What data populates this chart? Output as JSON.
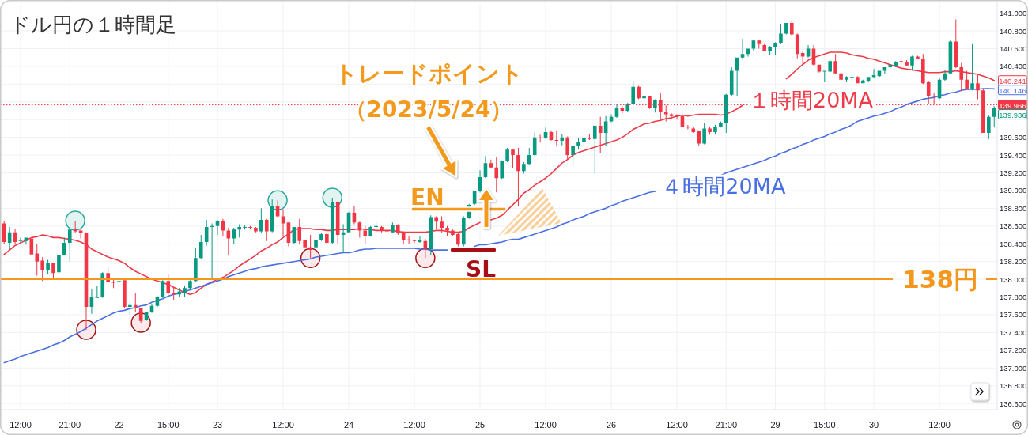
{
  "chart_data": {
    "type": "candlestick",
    "title": "ドル円の１時間足",
    "categories": [
      null,
      null,
      null,
      "12:00",
      null,
      null,
      null,
      null,
      null,
      null,
      null,
      null,
      "21:00",
      null,
      null,
      null,
      null,
      null,
      null,
      null,
      null,
      "22",
      null,
      null,
      null,
      null,
      null,
      null,
      null,
      null,
      "15:00",
      null,
      null,
      null,
      null,
      null,
      null,
      null,
      null,
      "23",
      null,
      null,
      null,
      null,
      null,
      null,
      null,
      null,
      null,
      null,
      null,
      "12:00",
      null,
      null,
      null,
      null,
      null,
      null,
      null,
      null,
      null,
      null,
      null,
      "24",
      null,
      null,
      null,
      null,
      null,
      null,
      null,
      null,
      null,
      null,
      null,
      "12:00",
      null,
      null,
      null,
      null,
      null,
      null,
      null,
      null,
      null,
      null,
      null,
      "25",
      null,
      null,
      null,
      null,
      null,
      null,
      null,
      null,
      null,
      null,
      null,
      "12:00",
      null,
      null,
      null,
      null,
      null,
      null,
      null,
      null,
      null,
      null,
      null,
      "26",
      null,
      null,
      null,
      null,
      null,
      null,
      null,
      null,
      null,
      null,
      null,
      "12:00",
      null,
      null,
      null,
      null,
      null,
      null,
      null,
      null,
      "21:00",
      null,
      null,
      null,
      null,
      null,
      null,
      null,
      null,
      "29",
      null,
      null,
      null,
      null,
      null,
      null,
      null,
      null,
      "15:00",
      null,
      null,
      null,
      null,
      null,
      null,
      null,
      null,
      "30",
      null,
      null,
      null,
      null,
      null,
      null,
      null,
      null,
      null,
      null,
      null,
      "12:00",
      null,
      null,
      null,
      null,
      null,
      null,
      null,
      null,
      null,
      null
    ],
    "ohlc": [
      [
        138.63,
        138.66,
        138.4,
        138.42
      ],
      [
        138.41,
        138.59,
        138.34,
        138.53
      ],
      [
        138.53,
        138.57,
        138.39,
        138.42
      ],
      [
        138.43,
        138.47,
        138.41,
        138.44
      ],
      [
        138.43,
        138.47,
        138.39,
        138.47
      ],
      [
        138.46,
        138.46,
        138.28,
        138.28
      ],
      [
        138.29,
        138.4,
        138.04,
        138.2
      ],
      [
        138.21,
        138.25,
        137.98,
        138.1
      ],
      [
        138.1,
        138.22,
        138.06,
        138.18
      ],
      [
        138.18,
        138.18,
        138.01,
        138.07
      ],
      [
        138.08,
        138.28,
        138.07,
        138.27
      ],
      [
        138.27,
        138.47,
        138.27,
        138.41
      ],
      [
        138.41,
        138.57,
        138.2,
        138.56
      ],
      [
        138.56,
        138.66,
        138.52,
        138.54
      ],
      [
        138.55,
        138.56,
        138.46,
        138.52
      ],
      [
        138.52,
        138.53,
        137.43,
        137.69
      ],
      [
        137.69,
        137.89,
        137.61,
        137.8
      ],
      [
        137.79,
        137.93,
        137.79,
        137.8
      ],
      [
        137.8,
        138.08,
        137.79,
        138.07
      ],
      [
        138.07,
        138.14,
        137.96,
        137.97
      ],
      [
        137.97,
        138.0,
        137.9,
        137.96
      ],
      [
        137.97,
        138.03,
        137.96,
        137.98
      ],
      [
        137.99,
        137.99,
        137.68,
        137.69
      ],
      [
        137.69,
        137.75,
        137.6,
        137.71
      ],
      [
        137.71,
        137.85,
        137.63,
        137.69
      ],
      [
        137.68,
        137.68,
        137.51,
        137.53
      ],
      [
        137.54,
        137.63,
        137.53,
        137.63
      ],
      [
        137.63,
        137.72,
        137.62,
        137.7
      ],
      [
        137.7,
        137.81,
        137.69,
        137.8
      ],
      [
        137.8,
        137.99,
        137.79,
        137.98
      ],
      [
        137.98,
        138.05,
        137.82,
        137.84
      ],
      [
        137.85,
        137.91,
        137.77,
        137.83
      ],
      [
        137.83,
        137.9,
        137.8,
        137.86
      ],
      [
        137.84,
        137.92,
        137.8,
        137.9
      ],
      [
        137.9,
        137.99,
        137.89,
        137.98
      ],
      [
        137.98,
        138.35,
        137.97,
        138.24
      ],
      [
        138.24,
        138.5,
        138.23,
        138.42
      ],
      [
        138.42,
        138.67,
        138.38,
        138.59
      ],
      [
        138.59,
        138.63,
        138.0,
        138.6
      ],
      [
        138.6,
        138.67,
        138.5,
        138.66
      ],
      [
        138.66,
        138.68,
        138.49,
        138.55
      ],
      [
        138.55,
        138.58,
        138.27,
        138.46
      ],
      [
        138.46,
        138.58,
        138.4,
        138.56
      ],
      [
        138.56,
        138.62,
        138.47,
        138.59
      ],
      [
        138.58,
        138.61,
        138.56,
        138.59
      ],
      [
        138.59,
        138.6,
        138.56,
        138.58
      ],
      [
        138.58,
        138.59,
        138.53,
        138.54
      ],
      [
        138.54,
        138.8,
        138.52,
        138.67
      ],
      [
        138.67,
        138.68,
        138.43,
        138.54
      ],
      [
        138.54,
        138.9,
        138.53,
        138.83
      ],
      [
        138.83,
        138.89,
        138.7,
        138.71
      ],
      [
        138.71,
        138.79,
        138.49,
        138.63
      ],
      [
        138.64,
        138.64,
        138.37,
        138.41
      ],
      [
        138.41,
        138.59,
        138.4,
        138.59
      ],
      [
        138.59,
        138.68,
        138.39,
        138.43
      ],
      [
        138.44,
        138.44,
        138.36,
        138.36
      ],
      [
        138.36,
        138.5,
        138.24,
        138.33
      ],
      [
        138.36,
        138.44,
        138.28,
        138.44
      ],
      [
        138.44,
        138.52,
        138.43,
        138.51
      ],
      [
        138.51,
        138.52,
        138.4,
        138.41
      ],
      [
        138.41,
        138.92,
        138.4,
        138.87
      ],
      [
        138.87,
        138.88,
        138.4,
        138.5
      ],
      [
        138.5,
        138.62,
        138.31,
        138.53
      ],
      [
        138.53,
        138.76,
        138.53,
        138.75
      ],
      [
        138.75,
        138.83,
        138.62,
        138.64
      ],
      [
        138.64,
        138.65,
        138.47,
        138.55
      ],
      [
        138.55,
        138.61,
        138.4,
        138.49
      ],
      [
        138.49,
        138.6,
        138.48,
        138.59
      ],
      [
        138.59,
        138.64,
        138.56,
        138.6
      ],
      [
        138.59,
        138.6,
        138.53,
        138.55
      ],
      [
        138.55,
        138.56,
        138.53,
        138.54
      ],
      [
        138.53,
        138.64,
        138.52,
        138.61
      ],
      [
        138.61,
        138.62,
        138.5,
        138.52
      ],
      [
        138.53,
        138.54,
        138.4,
        138.44
      ],
      [
        138.45,
        138.49,
        138.4,
        138.44
      ],
      [
        138.44,
        138.45,
        138.41,
        138.43
      ],
      [
        138.42,
        138.49,
        138.41,
        138.44
      ],
      [
        138.43,
        138.46,
        138.24,
        138.34
      ],
      [
        138.34,
        138.72,
        138.27,
        138.7
      ],
      [
        138.7,
        138.71,
        138.56,
        138.65
      ],
      [
        138.65,
        138.71,
        138.52,
        138.58
      ],
      [
        138.58,
        138.6,
        138.49,
        138.55
      ],
      [
        138.55,
        138.56,
        138.49,
        138.5
      ],
      [
        138.51,
        138.52,
        138.37,
        138.39
      ],
      [
        138.39,
        138.71,
        138.37,
        138.69
      ],
      [
        138.69,
        138.85,
        138.68,
        138.84
      ],
      [
        138.85,
        139.0,
        138.84,
        138.99
      ],
      [
        138.99,
        139.23,
        138.98,
        139.15
      ],
      [
        139.15,
        139.39,
        139.14,
        139.31
      ],
      [
        139.31,
        139.35,
        139.25,
        139.26
      ],
      [
        139.26,
        139.38,
        138.98,
        139.14
      ],
      [
        139.14,
        139.34,
        139.13,
        139.33
      ],
      [
        139.33,
        139.48,
        139.32,
        139.46
      ],
      [
        139.46,
        139.47,
        139.25,
        139.4
      ],
      [
        139.4,
        139.48,
        138.82,
        139.22
      ],
      [
        139.22,
        139.32,
        139.19,
        139.3
      ],
      [
        139.3,
        139.48,
        139.29,
        139.4
      ],
      [
        139.4,
        139.66,
        139.39,
        139.6
      ],
      [
        139.6,
        139.63,
        139.54,
        139.59
      ],
      [
        139.59,
        139.71,
        139.58,
        139.66
      ],
      [
        139.66,
        139.68,
        139.56,
        139.57
      ],
      [
        139.57,
        139.68,
        139.5,
        139.56
      ],
      [
        139.56,
        139.64,
        139.51,
        139.6
      ],
      [
        139.6,
        139.61,
        139.35,
        139.4
      ],
      [
        139.4,
        139.51,
        139.29,
        139.5
      ],
      [
        139.5,
        139.59,
        139.46,
        139.55
      ],
      [
        139.55,
        139.6,
        139.53,
        139.59
      ],
      [
        139.59,
        139.64,
        139.57,
        139.58
      ],
      [
        139.58,
        139.74,
        139.19,
        139.73
      ],
      [
        139.73,
        139.83,
        139.42,
        139.65
      ],
      [
        139.65,
        139.84,
        139.5,
        139.78
      ],
      [
        139.78,
        139.86,
        139.77,
        139.83
      ],
      [
        139.83,
        139.97,
        139.82,
        139.93
      ],
      [
        139.93,
        139.95,
        139.87,
        139.9
      ],
      [
        139.9,
        139.99,
        139.89,
        139.98
      ],
      [
        139.98,
        140.23,
        139.98,
        140.17
      ],
      [
        140.17,
        140.18,
        140.03,
        140.04
      ],
      [
        140.04,
        140.09,
        140.01,
        140.06
      ],
      [
        140.06,
        140.07,
        139.92,
        139.93
      ],
      [
        139.93,
        140.03,
        139.88,
        140.02
      ],
      [
        140.02,
        140.1,
        139.8,
        139.89
      ],
      [
        139.89,
        139.96,
        139.78,
        139.86
      ],
      [
        139.86,
        139.87,
        139.81,
        139.84
      ],
      [
        139.85,
        139.86,
        139.8,
        139.83
      ],
      [
        139.84,
        139.85,
        139.72,
        139.72
      ],
      [
        139.72,
        139.74,
        139.69,
        139.71
      ],
      [
        139.7,
        139.72,
        139.65,
        139.66
      ],
      [
        139.67,
        139.68,
        139.5,
        139.53
      ],
      [
        139.53,
        139.76,
        139.52,
        139.7
      ],
      [
        139.7,
        139.72,
        139.63,
        139.66
      ],
      [
        139.66,
        139.74,
        139.63,
        139.72
      ],
      [
        139.72,
        139.78,
        139.71,
        139.76
      ],
      [
        139.76,
        140.09,
        139.65,
        140.08
      ],
      [
        140.08,
        140.39,
        140.06,
        140.35
      ],
      [
        140.35,
        140.5,
        140.06,
        140.5
      ],
      [
        140.5,
        140.71,
        140.48,
        140.54
      ],
      [
        140.54,
        140.6,
        140.51,
        140.6
      ],
      [
        140.6,
        140.7,
        140.58,
        140.69
      ],
      [
        140.69,
        140.7,
        140.6,
        140.65
      ],
      [
        140.64,
        140.65,
        140.57,
        140.57
      ],
      [
        140.57,
        140.63,
        140.53,
        140.62
      ],
      [
        140.62,
        140.67,
        140.53,
        140.66
      ],
      [
        140.66,
        140.88,
        140.65,
        140.77
      ],
      [
        140.77,
        140.89,
        140.76,
        140.89
      ],
      [
        140.89,
        140.92,
        140.74,
        140.76
      ],
      [
        140.76,
        140.77,
        140.49,
        140.54
      ],
      [
        140.55,
        140.57,
        140.4,
        140.51
      ],
      [
        140.51,
        140.64,
        140.5,
        140.6
      ],
      [
        140.6,
        140.64,
        140.41,
        140.42
      ],
      [
        140.42,
        140.42,
        140.33,
        140.34
      ],
      [
        140.34,
        140.35,
        140.22,
        140.35
      ],
      [
        140.34,
        140.47,
        140.33,
        140.46
      ],
      [
        140.46,
        140.54,
        140.31,
        140.32
      ],
      [
        140.32,
        140.33,
        140.21,
        140.25
      ],
      [
        140.25,
        140.29,
        140.22,
        140.28
      ],
      [
        140.28,
        140.3,
        140.23,
        140.28
      ],
      [
        140.28,
        140.29,
        140.21,
        140.21
      ],
      [
        140.21,
        140.25,
        140.21,
        140.24
      ],
      [
        140.23,
        140.28,
        140.22,
        140.28
      ],
      [
        140.28,
        140.37,
        140.27,
        140.3
      ],
      [
        140.29,
        140.35,
        140.28,
        140.35
      ],
      [
        140.35,
        140.39,
        140.31,
        140.39
      ],
      [
        140.39,
        140.42,
        140.38,
        140.42
      ],
      [
        140.4,
        140.46,
        140.39,
        140.45
      ],
      [
        140.46,
        140.47,
        140.42,
        140.45
      ],
      [
        140.45,
        140.47,
        140.4,
        140.41
      ],
      [
        140.41,
        140.52,
        140.36,
        140.51
      ],
      [
        140.51,
        140.52,
        140.48,
        140.48
      ],
      [
        140.48,
        140.54,
        140.2,
        140.21
      ],
      [
        140.22,
        140.23,
        139.97,
        140.06
      ],
      [
        140.07,
        140.1,
        139.98,
        140.06
      ],
      [
        140.04,
        140.27,
        140.03,
        140.25
      ],
      [
        140.25,
        140.36,
        140.23,
        140.32
      ],
      [
        140.32,
        140.7,
        140.31,
        140.68
      ],
      [
        140.68,
        140.93,
        140.38,
        140.39
      ],
      [
        140.39,
        140.44,
        140.12,
        140.25
      ],
      [
        140.25,
        140.35,
        140.14,
        140.15
      ],
      [
        140.15,
        140.65,
        140.13,
        140.21
      ],
      [
        140.21,
        140.3,
        140.03,
        140.13
      ],
      [
        140.13,
        140.14,
        139.65,
        139.65
      ],
      [
        139.65,
        139.85,
        139.58,
        139.83
      ],
      [
        139.83,
        139.95,
        139.71,
        139.936
      ]
    ],
    "colors": [
      "#f23645",
      "#089981",
      "#f23645",
      "#089981",
      "#089981",
      "#f23645",
      "#f23645",
      "#f23645",
      "#089981",
      "#f23645",
      "#089981",
      "#089981",
      "#089981",
      "#f23645",
      "#f23645",
      "#f23645",
      "#089981",
      "#089981",
      "#089981",
      "#f23645",
      "#f23645",
      "#089981",
      "#f23645",
      "#089981",
      "#f23645",
      "#f23645",
      "#089981",
      "#089981",
      "#089981",
      "#089981",
      "#f23645",
      "#f23645",
      "#089981",
      "#089981",
      "#089981",
      "#089981",
      "#089981",
      "#089981",
      "#089981",
      "#089981",
      "#f23645",
      "#f23645",
      "#089981",
      "#089981",
      "#089981",
      "#f23645",
      "#f23645",
      "#089981",
      "#f23645",
      "#089981",
      "#f23645",
      "#f23645",
      "#f23645",
      "#089981",
      "#f23645",
      "#f23645",
      "#f23645",
      "#089981",
      "#089981",
      "#f23645",
      "#089981",
      "#f23645",
      "#089981",
      "#089981",
      "#f23645",
      "#f23645",
      "#f23645",
      "#089981",
      "#089981",
      "#f23645",
      "#f23645",
      "#089981",
      "#f23645",
      "#f23645",
      "#f23645",
      "#f23645",
      "#089981",
      "#f23645",
      "#089981",
      "#f23645",
      "#f23645",
      "#f23645",
      "#f23645",
      "#f23645",
      "#089981",
      "#089981",
      "#089981",
      "#089981",
      "#089981",
      "#f23645",
      "#f23645",
      "#089981",
      "#089981",
      "#f23645",
      "#f23645",
      "#089981",
      "#089981",
      "#089981",
      "#f23645",
      "#089981",
      "#f23645",
      "#f23645",
      "#089981",
      "#f23645",
      "#089981",
      "#089981",
      "#089981",
      "#f23645",
      "#089981",
      "#f23645",
      "#089981",
      "#089981",
      "#089981",
      "#f23645",
      "#089981",
      "#089981",
      "#f23645",
      "#089981",
      "#f23645",
      "#089981",
      "#f23645",
      "#f23645",
      "#f23645",
      "#f23645",
      "#f23645",
      "#f23645",
      "#f23645",
      "#f23645",
      "#089981",
      "#f23645",
      "#089981",
      "#089981",
      "#089981",
      "#089981",
      "#089981",
      "#089981",
      "#089981",
      "#089981",
      "#f23645",
      "#f23645",
      "#089981",
      "#089981",
      "#089981",
      "#089981",
      "#f23645",
      "#f23645",
      "#f23645",
      "#089981",
      "#f23645",
      "#f23645",
      "#089981",
      "#089981",
      "#f23645",
      "#f23645",
      "#089981",
      "#089981",
      "#f23645",
      "#089981",
      "#089981",
      "#089981",
      "#089981",
      "#089981",
      "#089981",
      "#089981",
      "#f23645",
      "#f23645",
      "#089981",
      "#f23645",
      "#f23645",
      "#f23645",
      "#f23645",
      "#089981",
      "#089981",
      "#089981",
      "#f23645",
      "#f23645",
      "#f23645",
      "#089981",
      "#f23645",
      "#f23645",
      "#089981",
      "#089981"
    ],
    "series": [
      {
        "type": "line",
        "name": "１時間20MA",
        "color": "#ee3b47",
        "values": [
          138.28,
          138.33,
          138.38,
          138.41,
          138.44,
          138.47,
          138.48,
          138.5,
          138.49,
          138.47,
          138.47,
          138.46,
          138.45,
          138.44,
          138.42,
          138.39,
          138.34,
          138.31,
          138.28,
          138.25,
          138.23,
          138.21,
          138.18,
          138.13,
          138.09,
          138.06,
          138.03,
          138.0,
          137.98,
          137.96,
          137.94,
          137.91,
          137.88,
          137.85,
          137.83,
          137.85,
          137.9,
          137.94,
          137.97,
          138.0,
          138.02,
          138.06,
          138.1,
          138.15,
          138.19,
          138.23,
          138.27,
          138.32,
          138.35,
          138.39,
          138.42,
          138.47,
          138.51,
          138.56,
          138.57,
          138.57,
          138.57,
          138.56,
          138.56,
          138.55,
          138.55,
          138.56,
          138.56,
          138.56,
          138.56,
          138.57,
          138.56,
          138.56,
          138.55,
          138.55,
          138.55,
          138.55,
          138.54,
          138.53,
          138.53,
          138.53,
          138.53,
          138.53,
          138.54,
          138.55,
          138.55,
          138.54,
          138.53,
          138.53,
          138.54,
          138.58,
          138.61,
          138.64,
          null,
          138.67,
          138.69,
          138.72,
          138.78,
          138.84,
          138.9,
          138.97,
          139.01,
          139.06,
          139.1,
          139.14,
          139.19,
          139.25,
          139.31,
          139.35,
          139.4,
          139.43,
          139.45,
          139.47,
          139.49,
          139.51,
          139.53,
          139.55,
          139.57,
          139.6,
          139.64,
          139.69,
          139.72,
          139.75,
          139.76,
          139.78,
          139.79,
          139.81,
          139.82,
          139.84,
          139.85,
          139.84,
          139.85,
          139.86,
          139.86,
          139.86,
          139.86,
          139.85,
          139.86,
          139.89,
          139.92,
          139.96,
          null,
          null,
          null,
          null,
          null,
          null,
          null,
          140.26,
          140.31,
          140.37,
          140.42,
          140.47,
          140.5,
          140.52,
          140.54,
          140.56,
          140.56,
          140.56,
          140.55,
          140.53,
          140.52,
          140.51,
          140.49,
          140.48,
          140.46,
          140.44,
          140.42,
          140.4,
          140.38,
          140.37,
          140.36,
          140.35,
          140.34,
          140.33,
          140.33,
          140.33,
          140.34,
          140.34,
          140.35,
          140.34,
          140.33,
          140.32,
          140.31,
          140.29,
          140.27,
          140.241
        ]
      },
      {
        "type": "line",
        "name": "４時間20MA",
        "color": "#4a6fe3",
        "values": [
          137.06,
          137.08,
          137.1,
          137.13,
          137.15,
          137.17,
          137.19,
          137.21,
          137.23,
          137.26,
          137.28,
          137.31,
          137.35,
          137.38,
          137.41,
          137.45,
          137.49,
          137.53,
          137.56,
          137.59,
          137.62,
          137.64,
          137.65,
          137.67,
          137.68,
          137.7,
          137.71,
          137.74,
          137.76,
          137.78,
          137.81,
          137.83,
          137.84,
          137.86,
          137.88,
          137.9,
          137.92,
          137.94,
          137.96,
          137.98,
          138.0,
          138.03,
          138.05,
          138.07,
          138.09,
          138.11,
          138.12,
          138.14,
          138.15,
          138.16,
          138.17,
          138.18,
          138.19,
          138.2,
          138.21,
          138.22,
          138.23,
          138.25,
          138.26,
          138.27,
          138.28,
          138.29,
          138.3,
          138.3,
          138.31,
          138.33,
          138.34,
          138.34,
          138.35,
          138.35,
          138.35,
          138.35,
          138.35,
          138.35,
          138.35,
          138.35,
          138.34,
          138.34,
          138.33,
          138.33,
          138.33,
          138.33,
          null,
          null,
          null,
          null,
          138.37,
          138.39,
          138.39,
          138.4,
          138.41,
          138.42,
          138.44,
          138.45,
          138.45,
          138.47,
          138.49,
          138.51,
          138.53,
          138.55,
          138.57,
          138.59,
          138.62,
          138.64,
          138.67,
          138.69,
          138.71,
          138.74,
          138.76,
          138.78,
          138.8,
          138.83,
          138.85,
          138.88,
          138.9,
          138.92,
          138.94,
          138.96,
          138.98,
          138.99,
          null,
          null,
          null,
          null,
          null,
          null,
          null,
          null,
          null,
          null,
          null,
          139.17,
          139.2,
          139.22,
          139.24,
          139.26,
          139.28,
          139.3,
          139.32,
          139.34,
          139.37,
          139.39,
          139.42,
          139.44,
          139.47,
          139.49,
          139.52,
          139.54,
          139.57,
          139.59,
          139.61,
          139.64,
          139.66,
          139.69,
          139.71,
          139.74,
          139.78,
          139.8,
          139.82,
          139.84,
          139.85,
          139.87,
          139.89,
          139.92,
          139.94,
          139.97,
          139.99,
          140.01,
          140.03,
          140.04,
          140.05,
          140.07,
          140.08,
          140.1,
          140.11,
          140.13,
          140.14,
          140.14,
          140.14,
          140.15,
          140.15,
          140.146
        ]
      }
    ],
    "ylim": [
      136.53,
      141.13
    ],
    "yticks": [
      {
        "value": 136.6,
        "label": "136.600"
      },
      {
        "value": 136.8,
        "label": "136.800"
      },
      {
        "value": 137.0,
        "label": "137.000"
      },
      {
        "value": 137.2,
        "label": "137.200"
      },
      {
        "value": 137.4,
        "label": "137.400"
      },
      {
        "value": 137.6,
        "label": "137.600"
      },
      {
        "value": 137.8,
        "label": "137.800"
      },
      {
        "value": 138.0,
        "label": "138.000"
      },
      {
        "value": 138.2,
        "label": "138.200"
      },
      {
        "value": 138.4,
        "label": "138.400"
      },
      {
        "value": 138.6,
        "label": "138.600"
      },
      {
        "value": 138.8,
        "label": "138.800"
      },
      {
        "value": 139.0,
        "label": "139.000"
      },
      {
        "value": 139.2,
        "label": "139.200"
      },
      {
        "value": 139.4,
        "label": "139.400"
      },
      {
        "value": 139.6,
        "label": "139.600"
      },
      {
        "value": 139.8,
        "label": null
      },
      {
        "value": 140.0,
        "label": null
      },
      {
        "value": 140.2,
        "label": null
      },
      {
        "value": 140.4,
        "label": "140.400"
      },
      {
        "value": 140.6,
        "label": "140.600"
      },
      {
        "value": 140.8,
        "label": "140.800"
      },
      {
        "value": 141.0,
        "label": "141.000"
      }
    ],
    "grid": true,
    "ref_lines": [
      {
        "axis": "y",
        "value": 138,
        "label": "138円",
        "color": "#f5961d"
      },
      {
        "axis": "y",
        "value": 139.966,
        "label": "139.966",
        "color": "#f23645",
        "line_style": "dotted"
      }
    ],
    "annotations": [
      "トレードポイント",
      "（2023/5/24）",
      "EN",
      "SL",
      {
        "text": "140.241",
        "y": 140.241
      },
      {
        "text": "140.146",
        "y": 140.146
      },
      "139.936"
    ]
  }
}
